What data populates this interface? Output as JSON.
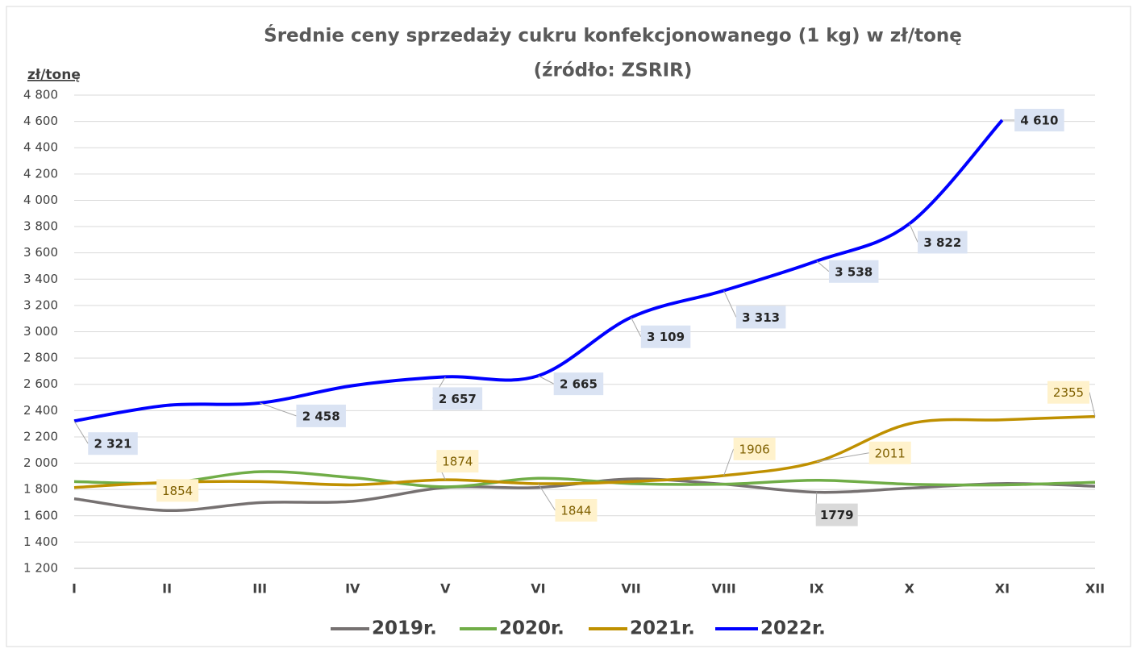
{
  "chart_data": {
    "type": "line",
    "title": "Średnie ceny sprzedaży cukru konfekcjonowanego (1 kg) w zł/tonę",
    "subtitle": "(źródło: ZSRIR)",
    "y_label": "zł/tonę",
    "categories": [
      "I",
      "II",
      "III",
      "IV",
      "V",
      "VI",
      "VII",
      "VIII",
      "IX",
      "X",
      "XI",
      "XII"
    ],
    "series": [
      {
        "name": "2019r.",
        "color": "#767171",
        "values": [
          1730,
          1640,
          1700,
          1710,
          1815,
          1815,
          1880,
          1840,
          1779,
          1810,
          1845,
          1825
        ],
        "value_labels": [
          null,
          null,
          null,
          null,
          null,
          null,
          null,
          null,
          "1779",
          null,
          null,
          null
        ]
      },
      {
        "name": "2020r.",
        "color": "#70ad47",
        "values": [
          1860,
          1850,
          1935,
          1890,
          1820,
          1885,
          1845,
          1840,
          1870,
          1840,
          1835,
          1855
        ]
      },
      {
        "name": "2021r.",
        "color": "#bf9000",
        "values": [
          1815,
          1854,
          1860,
          1835,
          1874,
          1844,
          1860,
          1906,
          2011,
          2300,
          2330,
          2355
        ],
        "value_labels": [
          null,
          "1854",
          null,
          null,
          "1874",
          "1844",
          null,
          "1906",
          "2011",
          null,
          null,
          "2355"
        ]
      },
      {
        "name": "2022r.",
        "color": "#0000ff",
        "values": [
          2321,
          2440,
          2458,
          2590,
          2657,
          2665,
          3109,
          3313,
          3538,
          3822,
          4610,
          null
        ],
        "value_labels": [
          "2 321",
          null,
          "2 458",
          null,
          "2 657",
          "2 665",
          "3 109",
          "3 313",
          "3 538",
          "3 822",
          "4 610",
          null
        ]
      }
    ],
    "ylim": [
      1200,
      4800
    ],
    "yticks": [
      {
        "value": 1200,
        "label": "1 200"
      },
      {
        "value": 1400,
        "label": "1 400"
      },
      {
        "value": 1600,
        "label": "1 600"
      },
      {
        "value": 1800,
        "label": "1 800"
      },
      {
        "value": 2000,
        "label": "2 000"
      },
      {
        "value": 2200,
        "label": "2 200"
      },
      {
        "value": 2400,
        "label": "2 400"
      },
      {
        "value": 2600,
        "label": "2 600"
      },
      {
        "value": 2800,
        "label": "2 800"
      },
      {
        "value": 3000,
        "label": "3 000"
      },
      {
        "value": 3200,
        "label": "3 200"
      },
      {
        "value": 3400,
        "label": "3 400"
      },
      {
        "value": 3600,
        "label": "3 600"
      },
      {
        "value": 3800,
        "label": "3 800"
      },
      {
        "value": 4000,
        "label": "4 000"
      },
      {
        "value": 4200,
        "label": "4 200"
      },
      {
        "value": 4400,
        "label": "4 400"
      },
      {
        "value": 4600,
        "label": "4 600"
      },
      {
        "value": 4800,
        "label": "4 800"
      }
    ],
    "grid": true,
    "legend": "bottom"
  }
}
